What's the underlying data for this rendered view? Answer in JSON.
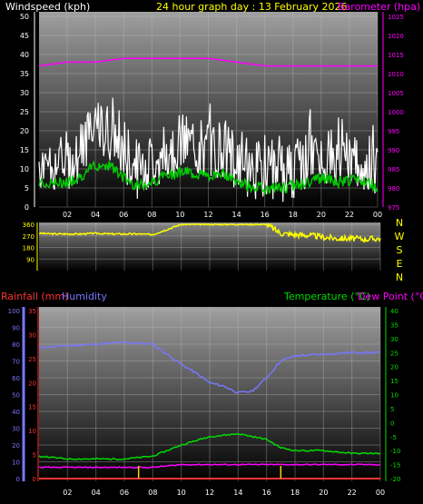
{
  "header": {
    "windspeed_label": "Windspeed (kph)",
    "title": "24 hour graph day : 13 February 2026",
    "barometer_label": "Barometer (hpa)"
  },
  "middle_header": {
    "rainfall_label": "Rainfall (mm)",
    "humidity_label": "Humidity",
    "temperature_label": "Temperature (°C)",
    "dewpoint_label": "Dew Point (°C)"
  },
  "compass_labels": [
    "N",
    "W",
    "S",
    "E",
    "N"
  ],
  "colors": {
    "windspeed": "#ffffff",
    "wind_avg": "#00cc00",
    "barometer": "#ff00ff",
    "title": "#ffff00",
    "direction": "#ffff00",
    "rainfall": "#ff3333",
    "humidity": "#7777ff",
    "temperature": "#00dd00",
    "dewpoint": "#ff00ff"
  },
  "chart_data": [
    {
      "type": "line",
      "title": "24 hour graph day : 13 February 2026",
      "x_ticks": [
        "02",
        "04",
        "06",
        "08",
        "10",
        "12",
        "14",
        "16",
        "18",
        "20",
        "22",
        "00"
      ],
      "y_left": {
        "label": "Windspeed (kph)",
        "range": [
          0,
          50
        ],
        "ticks": [
          0,
          5,
          10,
          15,
          20,
          25,
          30,
          35,
          40,
          45,
          50
        ]
      },
      "y_right": {
        "label": "Barometer (hpa)",
        "range": [
          975,
          1025
        ],
        "ticks": [
          975,
          980,
          985,
          990,
          995,
          1000,
          1005,
          1010,
          1015,
          1020,
          1025
        ]
      },
      "series": [
        {
          "name": "Windspeed (kph)",
          "axis": "left",
          "x": [
            0,
            1,
            2,
            3,
            4,
            5,
            6,
            7,
            8,
            9,
            10,
            11,
            12,
            13,
            14,
            15,
            16,
            17,
            18,
            19,
            20,
            21,
            22,
            23,
            24
          ],
          "values": [
            12,
            11,
            12,
            15,
            20,
            20,
            14,
            10,
            12,
            15,
            17,
            16,
            15,
            16,
            12,
            10,
            9,
            9,
            10,
            12,
            14,
            12,
            13,
            12,
            10
          ]
        },
        {
          "name": "Barometer (hpa)",
          "axis": "right",
          "x": [
            0,
            2,
            4,
            6,
            8,
            10,
            12,
            14,
            16,
            18,
            20,
            22,
            24
          ],
          "values": [
            1012,
            1013,
            1013,
            1014,
            1014,
            1014,
            1014,
            1013,
            1012,
            1012,
            1012,
            1012,
            1012
          ]
        }
      ],
      "grid": true
    },
    {
      "type": "line",
      "x_ticks": [
        "02",
        "04",
        "06",
        "08",
        "10",
        "12",
        "14",
        "16",
        "18",
        "20",
        "22",
        "00"
      ],
      "y_left": {
        "ticks_label": [
          "90",
          "180",
          "270",
          "360"
        ],
        "range": [
          0,
          360
        ]
      },
      "series": [
        {
          "name": "Wind direction",
          "x": [
            0,
            1,
            2,
            3,
            4,
            5,
            6,
            7,
            8,
            9,
            10,
            11,
            12,
            13,
            14,
            15,
            16,
            17,
            18,
            19,
            20,
            21,
            22,
            23,
            24
          ],
          "values": [
            290,
            285,
            285,
            285,
            290,
            285,
            285,
            285,
            280,
            320,
            360,
            360,
            360,
            360,
            360,
            360,
            360,
            290,
            280,
            275,
            260,
            250,
            250,
            245,
            250
          ]
        }
      ],
      "grid": true
    },
    {
      "type": "line",
      "x_ticks": [
        "02",
        "04",
        "06",
        "08",
        "10",
        "12",
        "14",
        "16",
        "18",
        "20",
        "22",
        "00"
      ],
      "y_humidity": {
        "range": [
          0,
          100
        ],
        "ticks": [
          0,
          10,
          20,
          30,
          40,
          50,
          60,
          70,
          80,
          90,
          100
        ]
      },
      "y_rainfall": {
        "range": [
          0,
          35
        ],
        "ticks": [
          0,
          5,
          10,
          15,
          20,
          25,
          30,
          35
        ]
      },
      "y_right": {
        "range": [
          -20,
          40
        ],
        "ticks": [
          -20,
          -15,
          -10,
          -5,
          0,
          5,
          10,
          15,
          20,
          25,
          30,
          35,
          40
        ]
      },
      "series": [
        {
          "name": "Humidity",
          "axis": "humidity",
          "x": [
            0,
            2,
            4,
            6,
            8,
            9,
            10,
            11,
            12,
            13,
            14,
            15,
            16,
            17,
            18,
            20,
            22,
            24
          ],
          "values": [
            78,
            79,
            80,
            81,
            80,
            74,
            68,
            63,
            57,
            55,
            51,
            52,
            60,
            70,
            73,
            74,
            75,
            75
          ]
        },
        {
          "name": "Temperature (°C)",
          "axis": "right",
          "x": [
            0,
            2,
            4,
            6,
            8,
            10,
            12,
            14,
            16,
            17,
            18,
            20,
            22,
            24
          ],
          "values": [
            -12,
            -13,
            -13,
            -13,
            -12,
            -8,
            -5,
            -4,
            -6,
            -9,
            -10,
            -10,
            -11,
            -11
          ]
        },
        {
          "name": "Dew Point (°C)",
          "axis": "right",
          "x": [
            0,
            2,
            4,
            6,
            8,
            10,
            12,
            14,
            16,
            18,
            20,
            22,
            24
          ],
          "values": [
            -16,
            -16,
            -16,
            -16,
            -16,
            -15,
            -15,
            -15,
            -15,
            -15,
            -15,
            -15,
            -15
          ]
        },
        {
          "name": "Rainfall (mm)",
          "axis": "rainfall",
          "x": [
            0,
            24
          ],
          "values": [
            0,
            0
          ]
        }
      ],
      "grid": true
    }
  ]
}
